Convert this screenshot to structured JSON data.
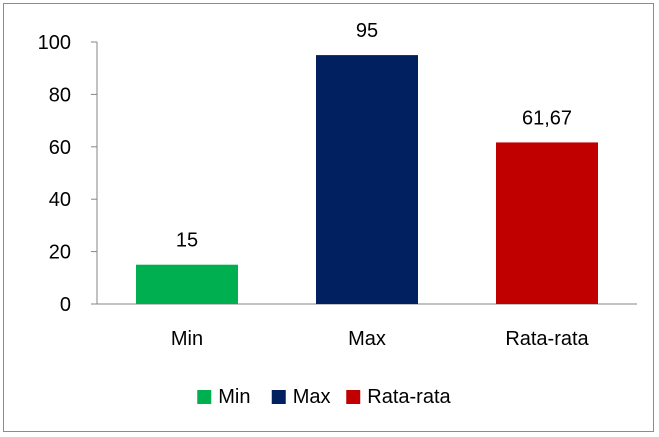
{
  "chart_data": {
    "type": "bar",
    "categories": [
      "Min",
      "Max",
      "Rata-rata"
    ],
    "values": [
      15,
      95,
      61.67
    ],
    "data_labels": [
      "15",
      "95",
      "61,67"
    ],
    "colors": [
      "#00B050",
      "#002060",
      "#C00000"
    ],
    "ylim": [
      0,
      100
    ],
    "yticks": [
      0,
      20,
      40,
      60,
      80,
      100
    ],
    "title": "",
    "xlabel": "",
    "ylabel": "",
    "grid": false,
    "legend_position": "bottom",
    "legend": [
      "Min",
      "Max",
      "Rata-rata"
    ]
  }
}
